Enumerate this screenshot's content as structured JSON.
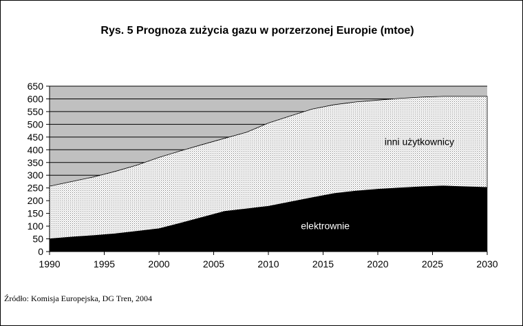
{
  "chart_data": {
    "type": "area",
    "title": "Rys. 5 Prognoza zużycia gazu w porzerzonej Europie (mtoe)",
    "xlabel": "",
    "ylabel": "",
    "xlim": [
      1990,
      2030
    ],
    "ylim": [
      0,
      650
    ],
    "x_ticks": [
      1990,
      1995,
      2000,
      2005,
      2010,
      2015,
      2020,
      2025,
      2030
    ],
    "y_ticks": [
      0,
      50,
      100,
      150,
      200,
      250,
      300,
      350,
      400,
      450,
      500,
      550,
      600,
      650
    ],
    "grid": true,
    "legend": "none",
    "x": [
      1990,
      1992,
      1994,
      1996,
      1998,
      2000,
      2002,
      2004,
      2006,
      2008,
      2010,
      2012,
      2014,
      2016,
      2018,
      2020,
      2022,
      2024,
      2026,
      2028,
      2030
    ],
    "series": [
      {
        "name": "elektrownie",
        "stacked": true,
        "color": "#000000",
        "values": [
          50,
          57,
          63,
          70,
          80,
          90,
          112,
          135,
          158,
          168,
          178,
          195,
          212,
          228,
          238,
          245,
          250,
          255,
          258,
          255,
          252
        ]
      },
      {
        "name": "inni użytkownicy",
        "stacked": true,
        "color": "#f2f2f2",
        "values": [
          207,
          218,
          230,
          245,
          260,
          280,
          284,
          286,
          287,
          301,
          327,
          338,
          348,
          349,
          350,
          350,
          352,
          352,
          352,
          355,
          358
        ]
      }
    ],
    "plot_background": "#c0c0c0",
    "source": "Źródło: Komisja Europejska, DG Tren, 2004"
  }
}
